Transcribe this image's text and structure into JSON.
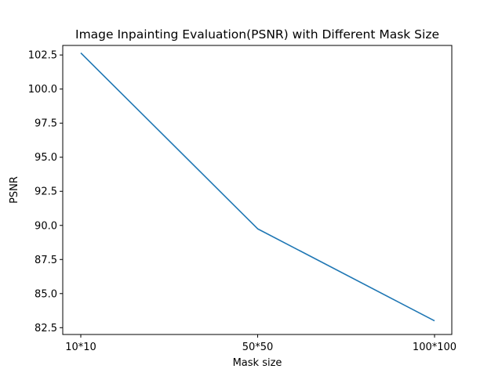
{
  "chart_data": {
    "type": "line",
    "title": "Image Inpainting Evaluation(PSNR) with Different Mask Size",
    "xlabel": "Mask size",
    "ylabel": "PSNR",
    "categories": [
      "10*10",
      "50*50",
      "100*100"
    ],
    "series": [
      {
        "values": [
          102.65,
          89.75,
          83.0
        ],
        "color": "#1f77b4"
      }
    ],
    "ylim": [
      82.0,
      103.2
    ],
    "yticks": [
      82.5,
      85.0,
      87.5,
      90.0,
      92.5,
      95.0,
      97.5,
      100.0,
      102.5
    ],
    "ytick_labels": [
      "82.5",
      "85.0",
      "87.5",
      "90.0",
      "92.5",
      "95.0",
      "97.5",
      "100.0",
      "102.5"
    ],
    "grid": false,
    "legend": "none"
  }
}
